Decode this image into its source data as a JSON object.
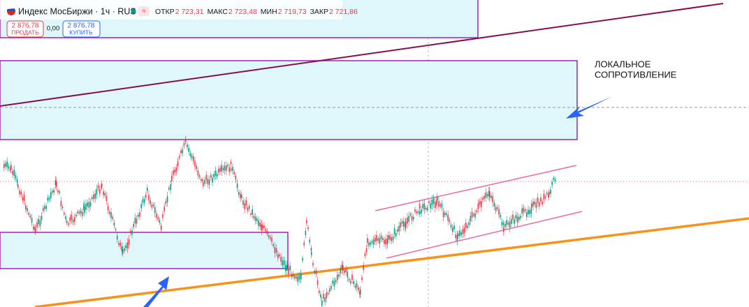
{
  "header": {
    "title": "Индекс МосБиржи · 1ч · RUS",
    "ohlc": [
      {
        "label": "ОТКР",
        "value": "2 723,31"
      },
      {
        "label": "МАКС",
        "value": "2 723,48"
      },
      {
        "label": "МИН",
        "value": "2 719,73"
      },
      {
        "label": "ЗАКР",
        "value": "2 721,86"
      }
    ]
  },
  "trade": {
    "sell": {
      "price": "2 876,78",
      "label": "ПРОДАТЬ"
    },
    "spread": "0,00",
    "buy": {
      "price": "2 876,78",
      "label": "КУПИТЬ"
    }
  },
  "annotation": [
    "ЛОКАЛЬНОЕ",
    "СОПРОТИВЛЕНИЕ"
  ]
}
